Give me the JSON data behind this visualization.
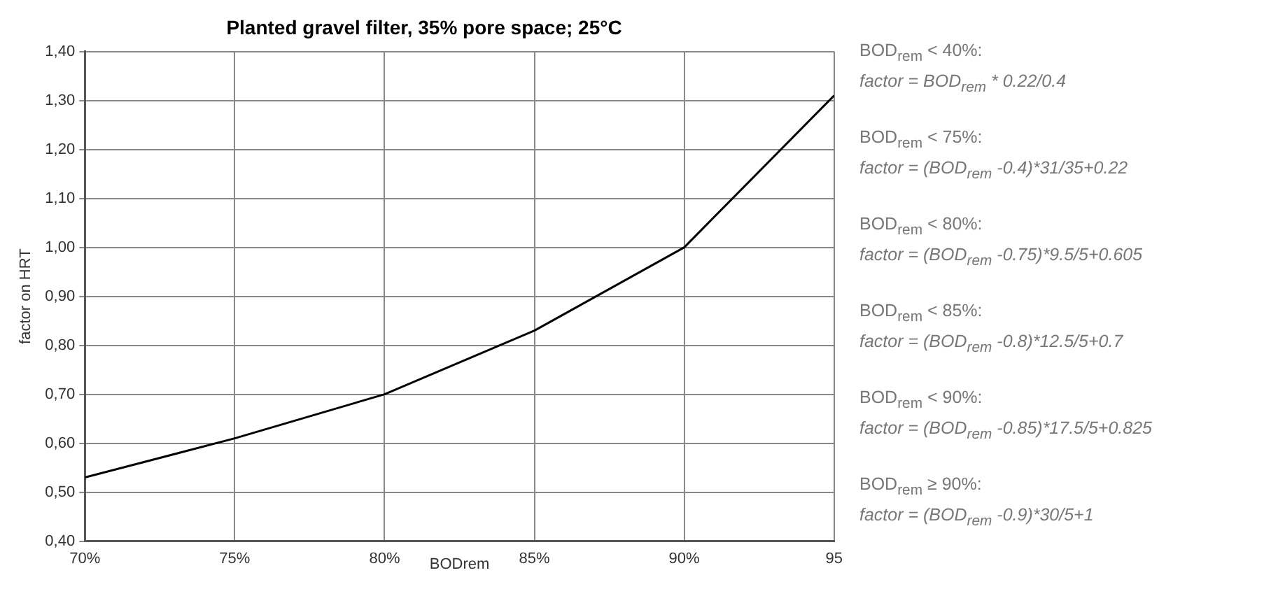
{
  "chart_data": {
    "type": "line",
    "title": "Planted gravel filter, 35% pore space; 25°C",
    "xlabel": "BODrem",
    "ylabel": "factor on HRT",
    "x": [
      70,
      75,
      80,
      85,
      90,
      95
    ],
    "series": [
      {
        "color": "#000000",
        "values": [
          0.53,
          0.61,
          0.7,
          0.83,
          1.0,
          1.31
        ]
      }
    ],
    "xlim": [
      70,
      95
    ],
    "xticks": [
      {
        "value": 70,
        "label": "70%"
      },
      {
        "value": 75,
        "label": "75%"
      },
      {
        "value": 80,
        "label": "80%"
      },
      {
        "value": 85,
        "label": "85%"
      },
      {
        "value": 90,
        "label": "90%"
      },
      95
    ],
    "ylim": [
      0.4,
      1.4
    ],
    "yticks": [
      {
        "value": 0.4,
        "label": "0,40"
      },
      {
        "value": 0.5,
        "label": "0,50"
      },
      {
        "value": 0.6,
        "label": "0,60"
      },
      {
        "value": 0.7,
        "label": "0,70"
      },
      {
        "value": 0.8,
        "label": "0,80"
      },
      {
        "value": 0.9,
        "label": "0,90"
      },
      {
        "value": 1.0,
        "label": "1,00"
      },
      {
        "value": 1.1,
        "label": "1,10"
      },
      {
        "value": 1.2,
        "label": "1,20"
      },
      {
        "value": 1.3,
        "label": "1,30"
      },
      {
        "value": 1.4,
        "label": "1,40"
      }
    ],
    "grid": true,
    "legend": false,
    "marker": "none",
    "line_style": "solid",
    "annotations": [
      "BOD$_{rem}$ < 40%:",
      "factor = BOD$_{rem}$ * 0.22/0.4",
      "BOD$_{rem}$ < 75%:",
      "factor = (BOD$_{rem}$ -0.4)*31/35+0.22",
      "BOD$_{rem}$ < 80%:",
      "factor = (BOD$_{rem}$ -0.75)*9.5/5+0.605",
      "BOD$_{rem}$ < 85%:",
      "factor = (BOD$_{rem}$ -0.8)*12.5/5+0.7",
      "BOD$_{rem}$ < 90%:",
      "factor = (BOD$_{rem}$ -0.85)*17.5/5+0.825",
      "BOD$_{rem}$ ≥ 90%:",
      "factor = (BOD$_{rem}$ -0.9)*30/5+1"
    ]
  }
}
